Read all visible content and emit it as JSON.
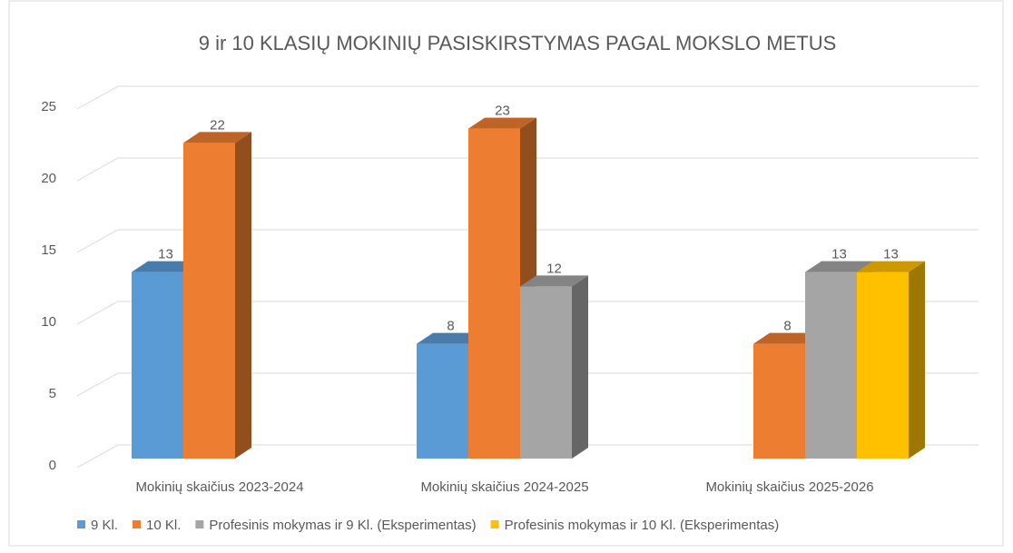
{
  "chart_data": {
    "type": "bar3d",
    "title": "9 ir 10 KLASIŲ MOKINIŲ PASISKIRSTYMAS PAGAL MOKSLO METUS",
    "categories": [
      "Mokinių skaičius 2023-2024",
      "Mokinių skaičius 2024-2025",
      "Mokinių skaičius 2025-2026"
    ],
    "series": [
      {
        "name": "9 Kl.",
        "color": "#5b9bd5",
        "values": [
          13,
          8,
          null
        ]
      },
      {
        "name": "10 Kl.",
        "color": "#ed7d31",
        "values": [
          22,
          23,
          8
        ]
      },
      {
        "name": "Profesinis mokymas ir 9 Kl. (Eksperimentas)",
        "color": "#a5a5a5",
        "values": [
          null,
          12,
          13
        ]
      },
      {
        "name": "Profesinis mokymas ir 10 Kl.  (Eksperimentas)",
        "color": "#ffc000",
        "values": [
          null,
          null,
          13
        ]
      }
    ],
    "ylim": [
      0,
      25
    ],
    "yticks": [
      0,
      5,
      10,
      15,
      20,
      25
    ],
    "grid": true,
    "legend": "bottom"
  }
}
